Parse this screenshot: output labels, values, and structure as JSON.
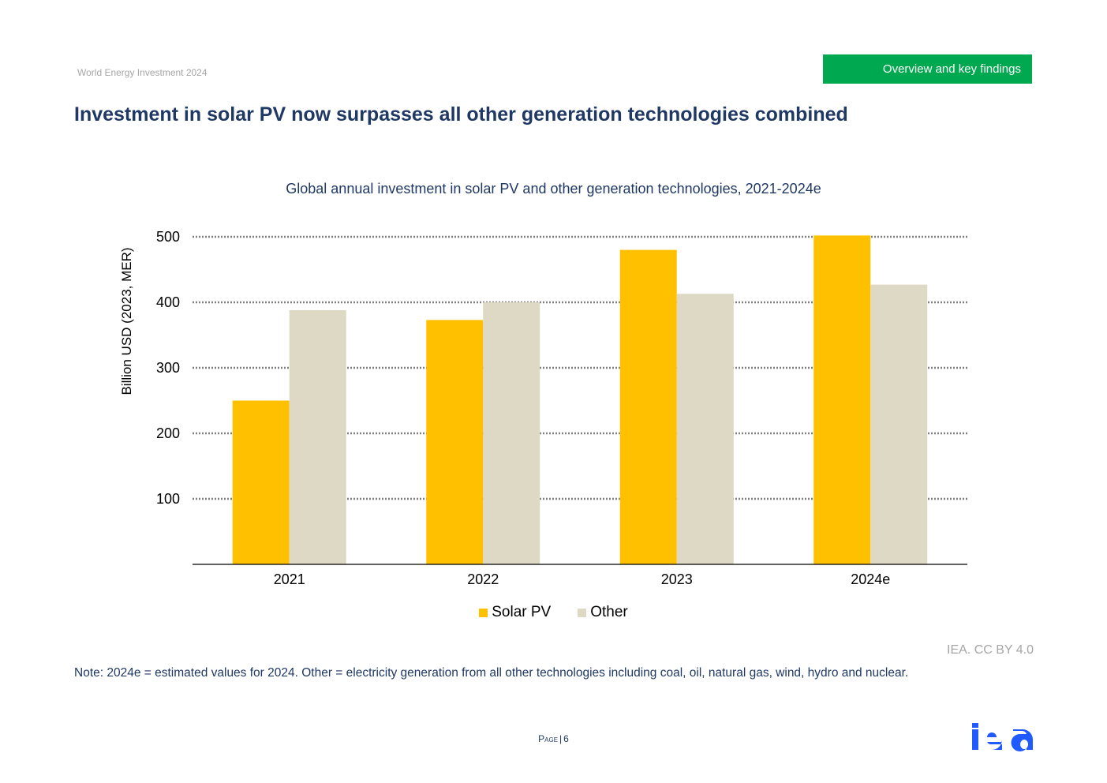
{
  "header": {
    "publication": "World Energy Investment 2024",
    "section": "Overview and key findings"
  },
  "title": "Investment in solar PV now surpasses all other generation technologies combined",
  "chart_data": {
    "type": "bar",
    "title": "Global annual investment in solar PV and other generation technologies, 2021-2024e",
    "xlabel": "",
    "ylabel": "Billion USD (2023, MER)",
    "categories": [
      "2021",
      "2022",
      "2023",
      "2024e"
    ],
    "series": [
      {
        "name": "Solar PV",
        "color": "#ffc000",
        "values": [
          250,
          373,
          480,
          502
        ]
      },
      {
        "name": "Other",
        "color": "#ddd9c4",
        "values": [
          388,
          400,
          413,
          427
        ]
      }
    ],
    "ylim": [
      0,
      500
    ],
    "yticks": [
      100,
      200,
      300,
      400,
      500
    ],
    "grid": true,
    "grid_style": "dotted",
    "legend_position": "bottom"
  },
  "credit": "IEA. CC BY 4.0",
  "note": "Note: 2024e = estimated values for 2024. Other = electricity generation from all other technologies including coal, oil, natural gas, wind, hydro and nuclear.",
  "footer": {
    "page_label": "Page",
    "page_number": "6",
    "logo": "iea"
  },
  "colors": {
    "title": "#1f3864",
    "section_tab": "#00a94f",
    "logo": "#1f5bff"
  }
}
